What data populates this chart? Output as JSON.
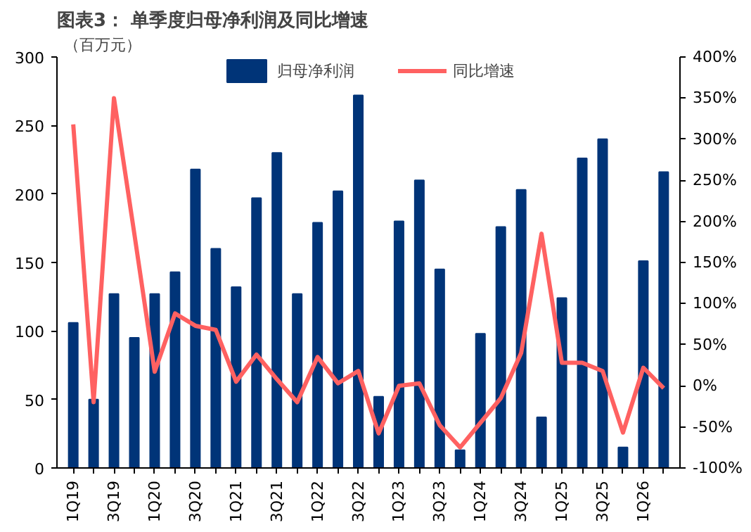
{
  "chart_data": {
    "type": "bar",
    "title": "图表3：  单季度归母净利润及同比增速",
    "ylabel": "（百万元）",
    "categories": [
      "1Q19",
      null,
      "3Q19",
      null,
      "1Q20",
      null,
      "3Q20",
      null,
      "1Q21",
      null,
      "3Q21",
      null,
      "1Q22",
      null,
      "3Q22",
      null,
      "1Q23",
      null,
      "3Q23",
      null,
      "1Q24",
      null,
      "3Q24",
      null,
      "1Q25",
      null,
      "3Q25",
      null,
      "1Q26",
      null
    ],
    "series": [
      {
        "name": "归母净利润",
        "color": "#003478",
        "values": [
          106,
          50,
          127,
          95,
          127,
          143,
          218,
          160,
          132,
          197,
          230,
          127,
          179,
          202,
          272,
          52,
          180,
          210,
          145,
          13,
          98,
          176,
          203,
          37,
          124,
          226,
          240,
          15,
          151,
          216
        ]
      },
      {
        "name": "同比增速",
        "type": "line",
        "axis": "y2",
        "color": "#ff6161",
        "values": [
          318,
          -20,
          350,
          185,
          17,
          88,
          73,
          68,
          5,
          38,
          8,
          -20,
          35,
          3,
          18,
          -58,
          0,
          3,
          -48,
          -75,
          -45,
          -15,
          40,
          185,
          28,
          28,
          18,
          -57,
          22,
          -3
        ]
      }
    ],
    "ylim": [
      0,
      300
    ],
    "yticks": [
      0,
      50,
      100,
      150,
      200,
      250,
      300
    ],
    "y2lim": [
      -100,
      400
    ],
    "y2ticks": [
      {
        "value": -100,
        "label": "-100%"
      },
      {
        "value": -50,
        "label": "-50%"
      },
      {
        "value": 0,
        "label": "0%"
      },
      {
        "value": 50,
        "label": "50%"
      },
      {
        "value": 100,
        "label": "100%"
      },
      {
        "value": 150,
        "label": "150%"
      },
      {
        "value": 200,
        "label": "200%"
      },
      {
        "value": 250,
        "label": "250%"
      },
      {
        "value": 300,
        "label": "300%"
      },
      {
        "value": 350,
        "label": "350%"
      },
      {
        "value": 400,
        "label": "400%"
      }
    ],
    "legend": "top",
    "grid": false
  }
}
